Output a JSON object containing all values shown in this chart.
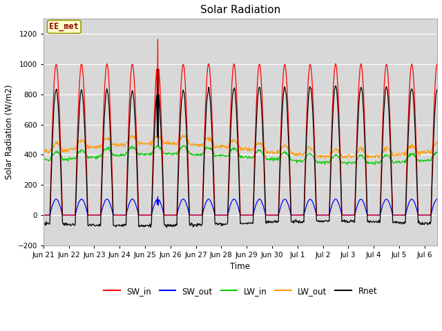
{
  "title": "Solar Radiation",
  "ylabel": "Solar Radiation (W/m2)",
  "xlabel": "Time",
  "ylim": [
    -200,
    1300
  ],
  "yticks": [
    -200,
    0,
    200,
    400,
    600,
    800,
    1000,
    1200
  ],
  "annotation": "EE_met",
  "colors": {
    "SW_in": "#ff0000",
    "SW_out": "#0000ff",
    "LW_in": "#00cc00",
    "LW_out": "#ff9900",
    "Rnet": "#000000"
  },
  "tick_labels": [
    "Jun 21",
    "Jun 22",
    "Jun 23",
    "Jun 24",
    "Jun 25",
    "Jun 26",
    "Jun 27",
    "Jun 28",
    "Jun 29",
    "Jun 30",
    "Jul 1",
    "Jul 2",
    "Jul 3",
    "Jul 4",
    "Jul 5",
    "Jul 6"
  ],
  "tick_positions": [
    0,
    1,
    2,
    3,
    4,
    5,
    6,
    7,
    8,
    9,
    10,
    11,
    12,
    13,
    14,
    15
  ],
  "xlim": [
    0,
    15.5
  ],
  "plot_bg_color": "#d8d8d8",
  "fig_bg_color": "#ffffff"
}
